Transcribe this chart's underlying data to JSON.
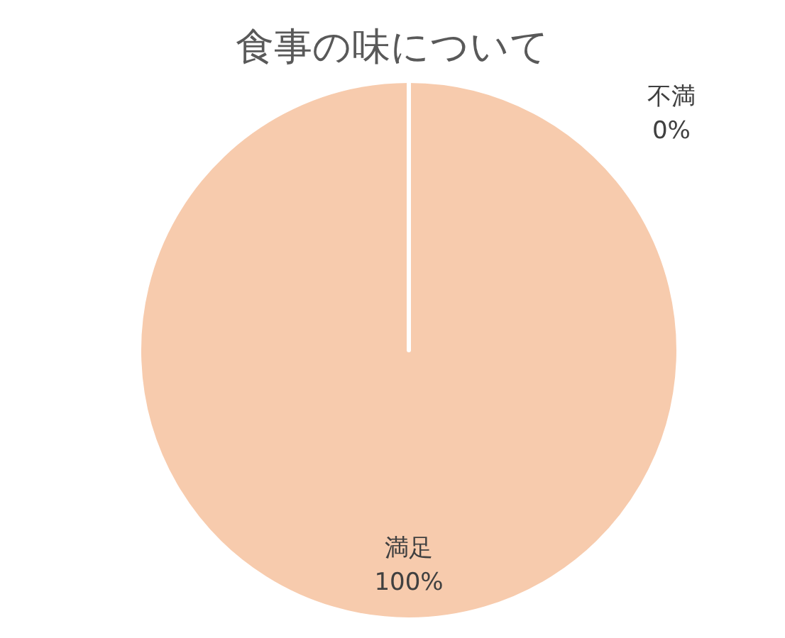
{
  "chart_data": {
    "type": "pie",
    "title": "食事の味について",
    "categories": [
      "満足",
      "不満"
    ],
    "values": [
      100,
      0
    ],
    "value_labels": [
      "100%",
      "0%"
    ],
    "colors": [
      "#f7cbad",
      "#a5c0e0"
    ],
    "legend": false
  }
}
